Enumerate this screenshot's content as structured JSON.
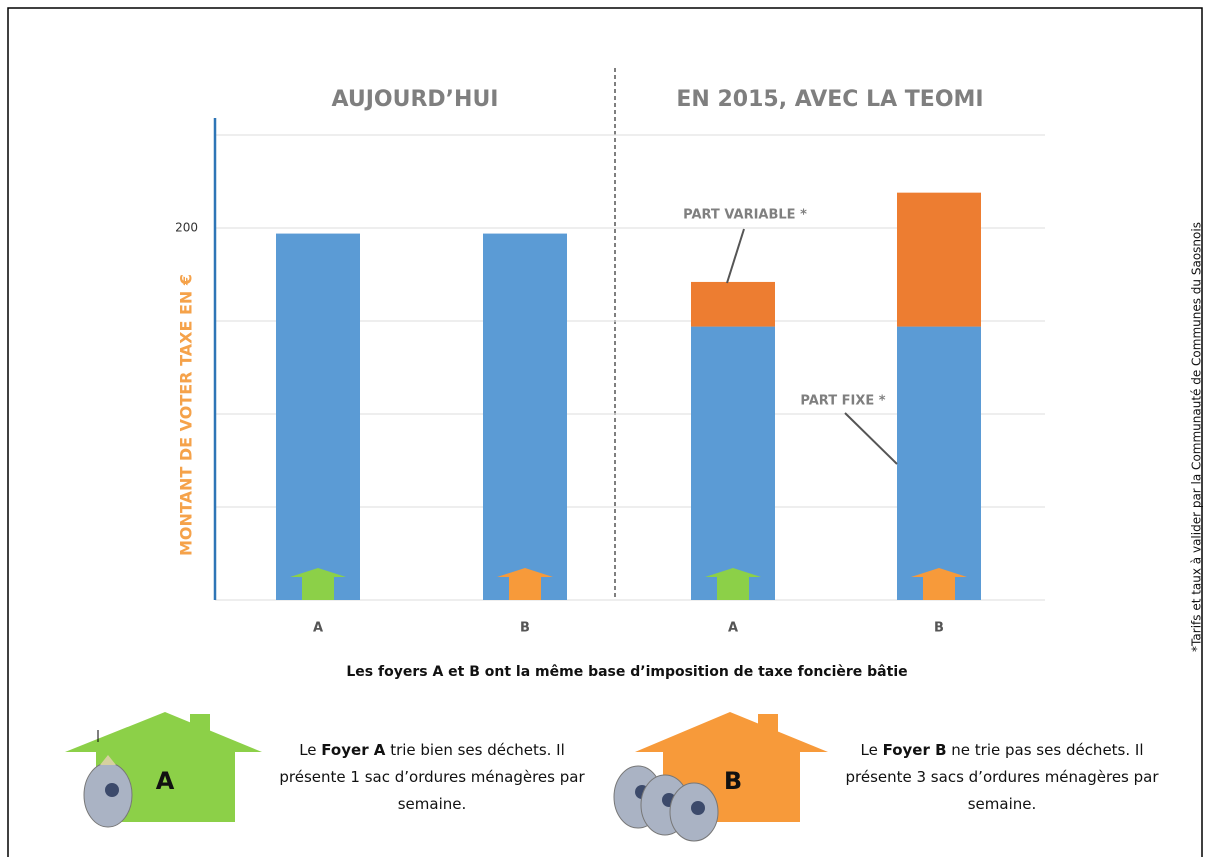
{
  "chart_data": {
    "type": "bar",
    "stacked": true,
    "panels": [
      "AUJOURD’HUI",
      "EN 2015, AVEC LA TEOMI"
    ],
    "ylabel": "MONTANT DE VOTER TAXE EN €",
    "categories": [
      "A",
      "B",
      "A",
      "B"
    ],
    "series": [
      {
        "name": "PART FIXE *",
        "color": "#5b9bd5",
        "values": [
          197,
          197,
          147,
          147
        ]
      },
      {
        "name": "PART VARIABLE *",
        "color": "#ed7d31",
        "values": [
          null,
          null,
          24,
          72
        ]
      }
    ],
    "ylim": [
      0,
      250
    ],
    "yticks": [
      {
        "value": 0,
        "label": null
      },
      {
        "value": 50,
        "label": null
      },
      {
        "value": 100,
        "label": null
      },
      {
        "value": 150,
        "label": null
      },
      200,
      {
        "value": 250,
        "label": null
      }
    ],
    "grid": true,
    "caption": "Les foyers A et B ont la  même base d’imposition de taxe foncière bâtie",
    "footnote": "*Tarifs et taux à valider par la Communauté de Communes du Saosnois"
  },
  "households": [
    {
      "label": "A",
      "text": [
        "Le ",
        "Foyer A",
        " trie bien ses déchets. Il présente 1 sac d’ordures ménagères par semaine."
      ]
    },
    {
      "label": "B",
      "text": [
        "Le ",
        "Foyer B",
        " ne trie pas ses déchets. Il présente 3 sacs d’ordures ménagères par semaine."
      ]
    }
  ]
}
